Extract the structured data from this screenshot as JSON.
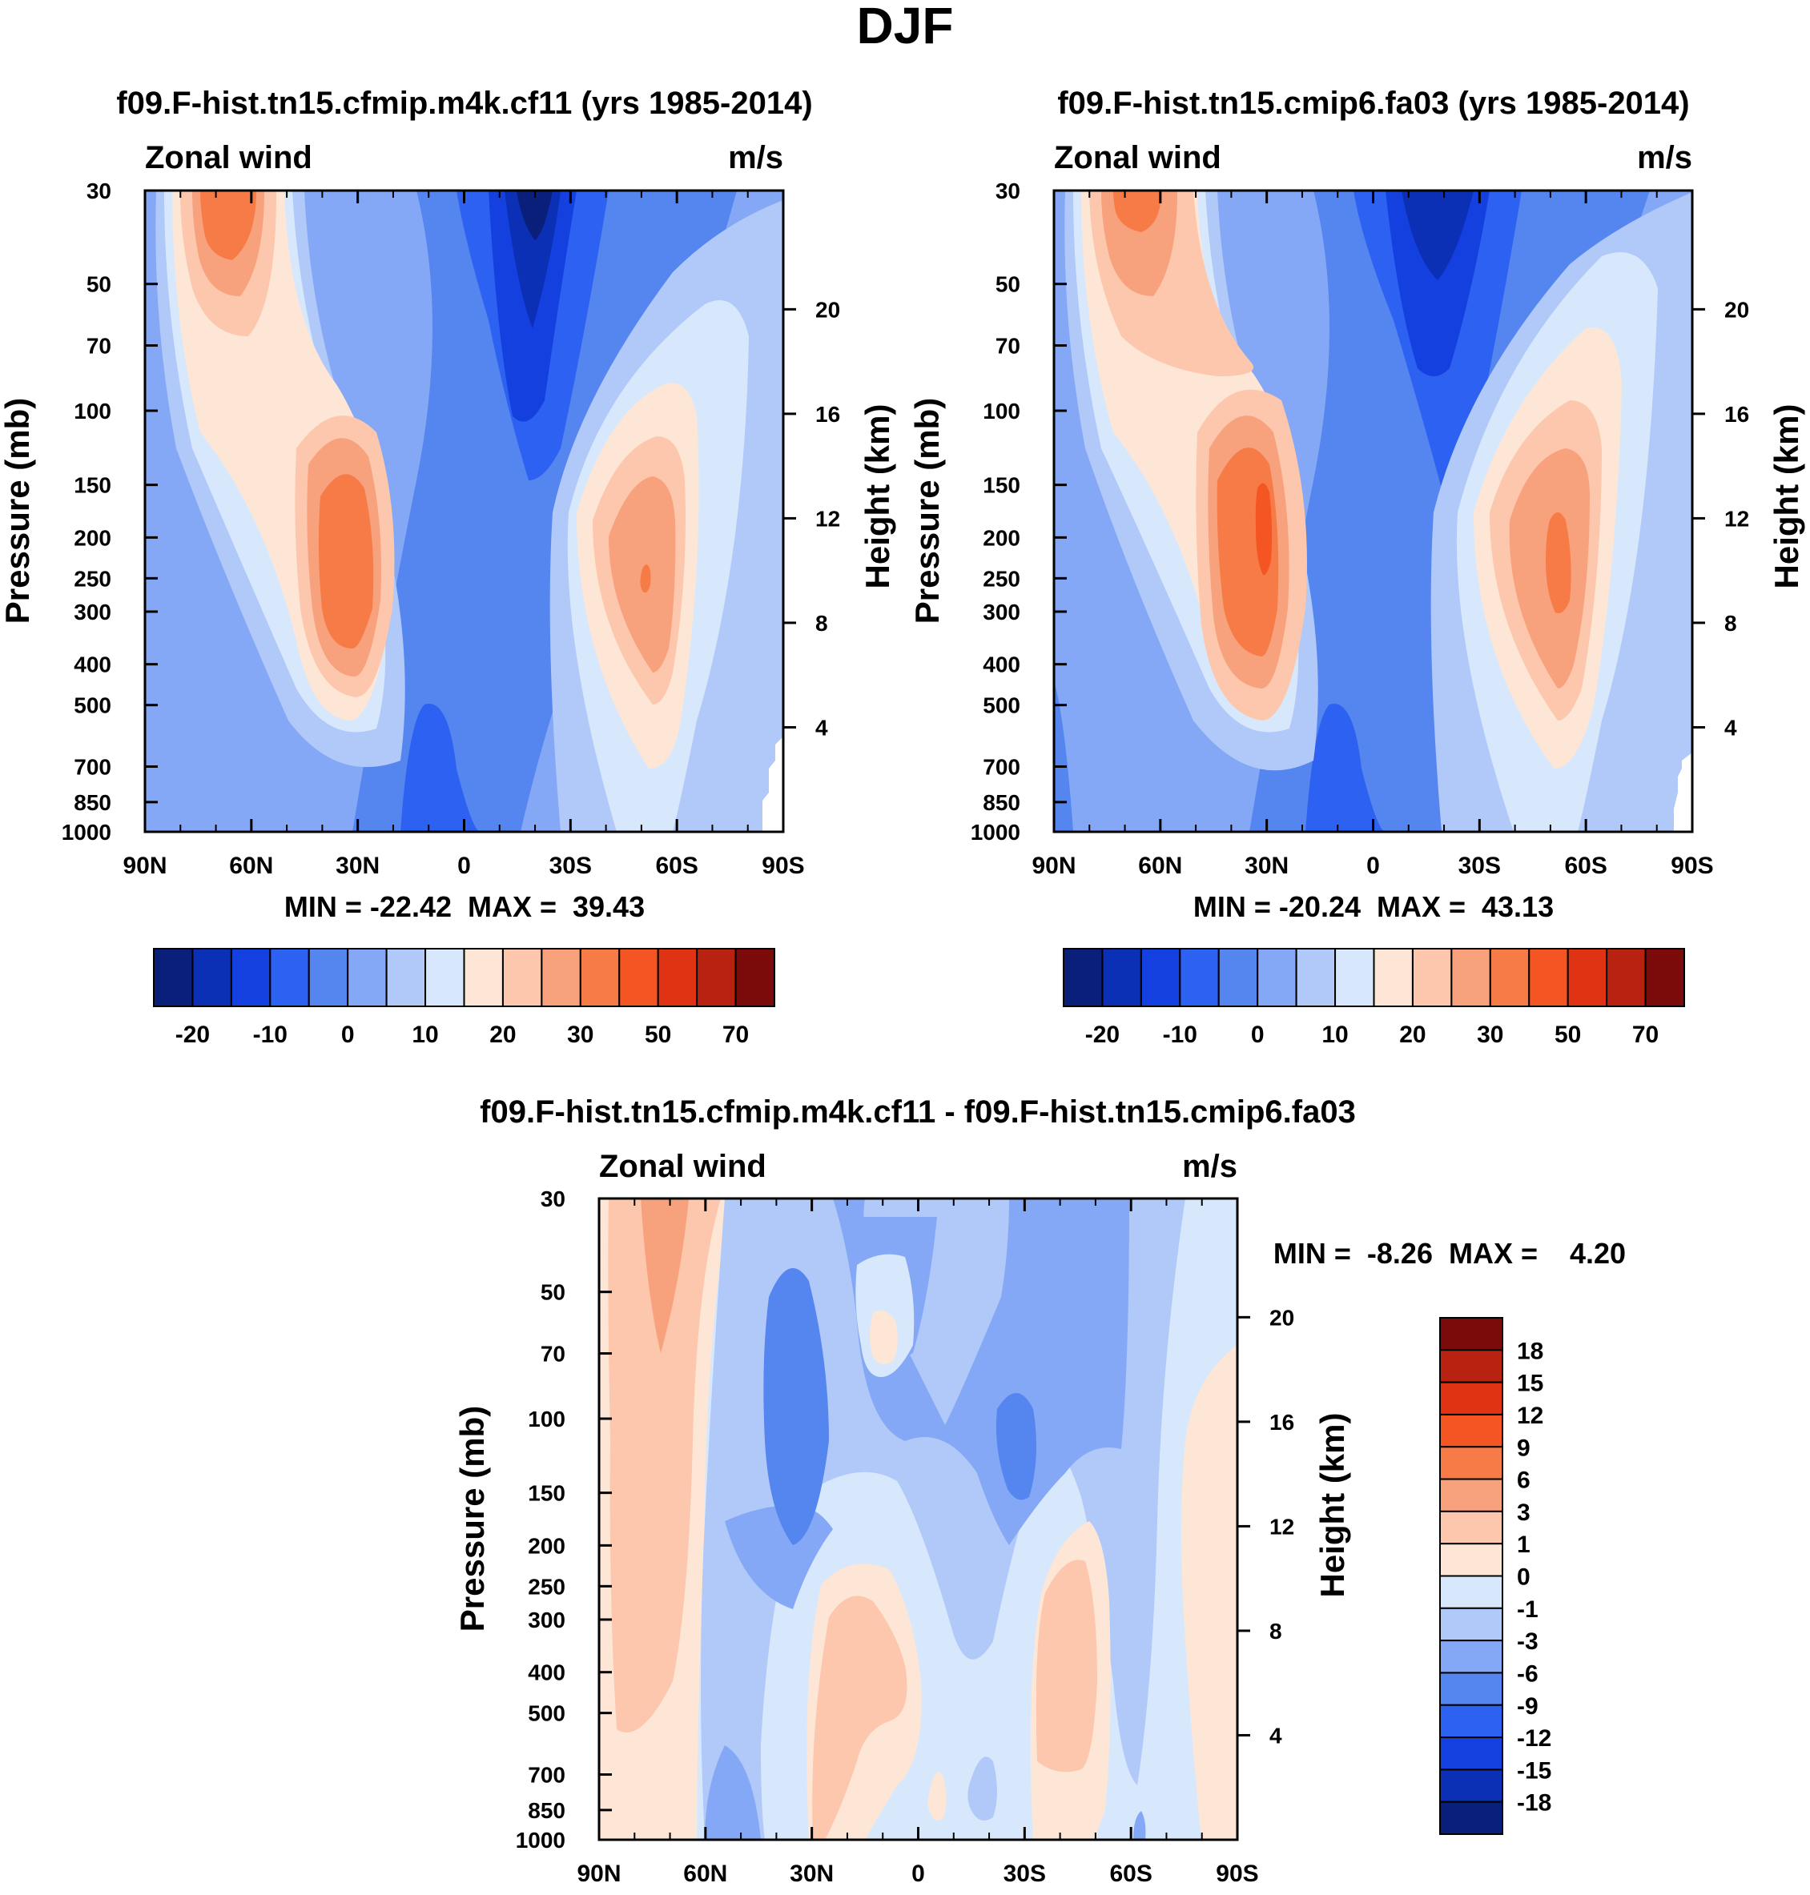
{
  "page": {
    "title": "DJF"
  },
  "chart_data": [
    {
      "type": "heatmap",
      "id": "panel1",
      "title": "f09.F-hist.tn15.cfmip.m4k.cf11 (yrs 1985-2014)",
      "variable": "Zonal wind",
      "units": "m/s",
      "xlabel": "",
      "ylabel": "Pressure (mb)",
      "ylabel_right": "Height (km)",
      "x_ticks": [
        "90N",
        "60N",
        "30N",
        "0",
        "30S",
        "60S",
        "90S"
      ],
      "y_ticks": [
        "30",
        "50",
        "70",
        "100",
        "150",
        "200",
        "250",
        "300",
        "400",
        "500",
        "700",
        "850",
        "1000"
      ],
      "height_ticks": [
        "20",
        "16",
        "12",
        "8",
        "4"
      ],
      "min_max_text": "MIN = -22.42  MAX =  39.43",
      "colorbar_labels": [
        "-20",
        "-10",
        "0",
        "10",
        "20",
        "30",
        "50",
        "70"
      ],
      "ylim": [
        1000,
        30
      ]
    },
    {
      "type": "heatmap",
      "id": "panel2",
      "title": "f09.F-hist.tn15.cmip6.fa03 (yrs 1985-2014)",
      "variable": "Zonal wind",
      "units": "m/s",
      "xlabel": "",
      "ylabel": "Pressure (mb)",
      "ylabel_right": "Height (km)",
      "x_ticks": [
        "90N",
        "60N",
        "30N",
        "0",
        "30S",
        "60S",
        "90S"
      ],
      "y_ticks": [
        "30",
        "50",
        "70",
        "100",
        "150",
        "200",
        "250",
        "300",
        "400",
        "500",
        "700",
        "850",
        "1000"
      ],
      "height_ticks": [
        "20",
        "16",
        "12",
        "8",
        "4"
      ],
      "min_max_text": "MIN = -20.24  MAX =  43.13",
      "colorbar_labels": [
        "-20",
        "-10",
        "0",
        "10",
        "20",
        "30",
        "50",
        "70"
      ],
      "ylim": [
        1000,
        30
      ]
    },
    {
      "type": "heatmap",
      "id": "panel3",
      "title": "f09.F-hist.tn15.cfmip.m4k.cf11 - f09.F-hist.tn15.cmip6.fa03",
      "variable": "Zonal wind",
      "units": "m/s",
      "xlabel": "",
      "ylabel": "Pressure (mb)",
      "ylabel_right": "Height (km)",
      "x_ticks": [
        "90N",
        "60N",
        "30N",
        "0",
        "30S",
        "60S",
        "90S"
      ],
      "y_ticks": [
        "30",
        "50",
        "70",
        "100",
        "150",
        "200",
        "250",
        "300",
        "400",
        "500",
        "700",
        "850",
        "1000"
      ],
      "height_ticks": [
        "20",
        "16",
        "12",
        "8",
        "4"
      ],
      "min_max_text": "MIN =  -8.26  MAX =    4.20",
      "colorbar_labels": [
        "18",
        "15",
        "12",
        "9",
        "6",
        "3",
        "1",
        "0",
        "-1",
        "-3",
        "-6",
        "-9",
        "-12",
        "-15",
        "-18"
      ],
      "ylim": [
        1000,
        30
      ]
    }
  ],
  "colors": {
    "main_scale": [
      "#0a1f7a",
      "#0b2fb5",
      "#1440e0",
      "#2d61f2",
      "#5585ee",
      "#84a8f5",
      "#b1c9f9",
      "#d8e8fc",
      "#fde6d5",
      "#fcc7ad",
      "#f7a27d",
      "#f67b47",
      "#f45522",
      "#e03314",
      "#b72310",
      "#7b0a0a"
    ],
    "diff_scale": [
      "#7b0a0a",
      "#b72310",
      "#e03314",
      "#f45522",
      "#f67b47",
      "#f7a27d",
      "#fcc7ad",
      "#fde6d5",
      "#d8e8fc",
      "#b1c9f9",
      "#84a8f5",
      "#5585ee",
      "#2d61f2",
      "#1440e0",
      "#0b2fb5",
      "#0a1f7a"
    ]
  }
}
